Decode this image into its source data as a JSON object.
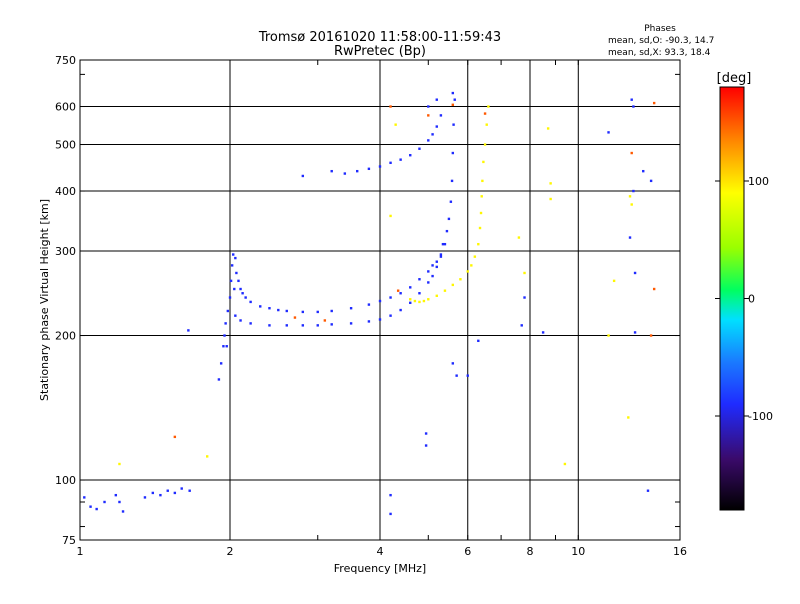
{
  "chart_data": {
    "type": "scatter",
    "title": "Tromsø 20161020 11:58:00-11:59:43",
    "subtitle": "RwPretec (Bp)",
    "xlabel": "Frequency [MHz]",
    "ylabel": "Stationary phase Virtual Height [km]",
    "x_scale": "log",
    "y_scale": "log",
    "xlim": [
      1,
      16
    ],
    "ylim": [
      75,
      750
    ],
    "xticks": [
      1,
      2,
      4,
      6,
      8,
      10,
      16
    ],
    "yticks": [
      75,
      100,
      200,
      300,
      400,
      500,
      600,
      750
    ],
    "grid": true,
    "phase_stats": {
      "heading": "Phases",
      "line_o": "mean, sd,O: -90.3, 14.7",
      "line_x": "mean, sd,X:  93.3, 18.4"
    },
    "colorbar": {
      "label": "[deg]",
      "range": [
        -180,
        180
      ],
      "ticks": [
        100,
        0,
        -100
      ]
    },
    "series": [
      {
        "trace": "o-mode",
        "phase_deg": -90,
        "points": [
          [
            1.02,
            92
          ],
          [
            1.05,
            88
          ],
          [
            1.08,
            87
          ],
          [
            1.12,
            90
          ],
          [
            1.18,
            93
          ],
          [
            1.2,
            90
          ],
          [
            1.22,
            86
          ],
          [
            1.35,
            92
          ],
          [
            1.4,
            94
          ],
          [
            1.45,
            93
          ],
          [
            1.5,
            95
          ],
          [
            1.55,
            94
          ],
          [
            1.6,
            96
          ],
          [
            1.66,
            95
          ],
          [
            1.65,
            205
          ],
          [
            1.9,
            162
          ],
          [
            1.92,
            175
          ],
          [
            1.94,
            190
          ],
          [
            1.95,
            200
          ],
          [
            1.96,
            212
          ],
          [
            1.97,
            190
          ],
          [
            1.98,
            225
          ],
          [
            2.0,
            240
          ],
          [
            2.01,
            260
          ],
          [
            2.02,
            280
          ],
          [
            2.03,
            295
          ],
          [
            2.05,
            290
          ],
          [
            2.04,
            250
          ],
          [
            2.06,
            270
          ],
          [
            2.08,
            260
          ],
          [
            2.1,
            250
          ],
          [
            2.12,
            245
          ],
          [
            2.15,
            240
          ],
          [
            2.2,
            235
          ],
          [
            2.3,
            230
          ],
          [
            2.4,
            228
          ],
          [
            2.5,
            226
          ],
          [
            2.6,
            225
          ],
          [
            2.8,
            224
          ],
          [
            3.0,
            224
          ],
          [
            3.2,
            225
          ],
          [
            3.5,
            228
          ],
          [
            3.8,
            232
          ],
          [
            4.0,
            236
          ],
          [
            4.2,
            240
          ],
          [
            4.4,
            245
          ],
          [
            4.6,
            252
          ],
          [
            4.8,
            262
          ],
          [
            5.0,
            272
          ],
          [
            5.1,
            280
          ],
          [
            5.2,
            285
          ],
          [
            5.3,
            295
          ],
          [
            5.4,
            310
          ],
          [
            5.45,
            330
          ],
          [
            5.5,
            350
          ],
          [
            5.55,
            380
          ],
          [
            5.58,
            420
          ],
          [
            5.6,
            480
          ],
          [
            5.62,
            550
          ],
          [
            5.65,
            620
          ],
          [
            2.05,
            220
          ],
          [
            2.1,
            215
          ],
          [
            2.2,
            212
          ],
          [
            2.4,
            210
          ],
          [
            2.6,
            210
          ],
          [
            2.8,
            210
          ],
          [
            3.0,
            210
          ],
          [
            3.2,
            211
          ],
          [
            3.5,
            212
          ],
          [
            3.8,
            214
          ],
          [
            4.0,
            216
          ],
          [
            4.2,
            220
          ],
          [
            4.4,
            226
          ],
          [
            4.6,
            234
          ],
          [
            4.8,
            245
          ],
          [
            5.0,
            258
          ],
          [
            5.1,
            266
          ],
          [
            5.2,
            278
          ],
          [
            5.3,
            292
          ],
          [
            5.35,
            310
          ],
          [
            2.8,
            430
          ],
          [
            3.2,
            440
          ],
          [
            3.4,
            435
          ],
          [
            3.6,
            440
          ],
          [
            3.8,
            445
          ],
          [
            4.0,
            450
          ],
          [
            4.2,
            458
          ],
          [
            4.4,
            465
          ],
          [
            4.6,
            475
          ],
          [
            4.8,
            490
          ],
          [
            5.0,
            510
          ],
          [
            5.1,
            525
          ],
          [
            5.2,
            545
          ],
          [
            5.3,
            575
          ],
          [
            5.0,
            600
          ],
          [
            5.2,
            620
          ],
          [
            5.6,
            640
          ],
          [
            4.2,
            85
          ],
          [
            4.2,
            93
          ],
          [
            4.95,
            125
          ],
          [
            4.95,
            118
          ],
          [
            5.6,
            175
          ],
          [
            5.7,
            165
          ],
          [
            6.0,
            165
          ],
          [
            6.3,
            195
          ],
          [
            7.8,
            240
          ],
          [
            7.7,
            210
          ],
          [
            8.5,
            203
          ],
          [
            11.5,
            530
          ],
          [
            12.8,
            620
          ],
          [
            12.9,
            600
          ],
          [
            12.9,
            400
          ],
          [
            13.0,
            270
          ],
          [
            12.7,
            320
          ],
          [
            13.0,
            203
          ],
          [
            13.8,
            95
          ],
          [
            14.0,
            420
          ],
          [
            13.5,
            440
          ]
        ]
      },
      {
        "trace": "x-mode",
        "phase_deg": 93,
        "points": [
          [
            4.6,
            238
          ],
          [
            4.7,
            236
          ],
          [
            4.8,
            235
          ],
          [
            4.9,
            236
          ],
          [
            5.0,
            238
          ],
          [
            5.2,
            242
          ],
          [
            5.4,
            248
          ],
          [
            5.6,
            255
          ],
          [
            5.8,
            262
          ],
          [
            6.0,
            272
          ],
          [
            6.1,
            280
          ],
          [
            6.2,
            292
          ],
          [
            6.3,
            310
          ],
          [
            6.35,
            335
          ],
          [
            6.38,
            360
          ],
          [
            6.4,
            390
          ],
          [
            6.42,
            420
          ],
          [
            6.45,
            460
          ],
          [
            6.5,
            500
          ],
          [
            6.55,
            550
          ],
          [
            6.6,
            600
          ],
          [
            4.2,
            355
          ],
          [
            4.3,
            550
          ],
          [
            7.6,
            320
          ],
          [
            7.8,
            270
          ],
          [
            8.7,
            540
          ],
          [
            8.8,
            415
          ],
          [
            8.8,
            385
          ],
          [
            12.8,
            375
          ],
          [
            12.7,
            390
          ],
          [
            11.8,
            260
          ],
          [
            11.5,
            200
          ],
          [
            12.6,
            135
          ],
          [
            9.4,
            108
          ],
          [
            1.8,
            112
          ],
          [
            1.2,
            108
          ]
        ]
      },
      {
        "trace": "scattered-other",
        "phase_deg": 150,
        "points": [
          [
            1.55,
            123
          ],
          [
            4.2,
            600
          ],
          [
            5.0,
            575
          ],
          [
            6.5,
            580
          ],
          [
            12.8,
            480
          ],
          [
            14.2,
            610
          ],
          [
            14.2,
            250
          ],
          [
            14.0,
            200
          ],
          [
            5.6,
            605
          ],
          [
            4.35,
            248
          ],
          [
            3.1,
            215
          ],
          [
            2.7,
            218
          ]
        ]
      }
    ]
  }
}
